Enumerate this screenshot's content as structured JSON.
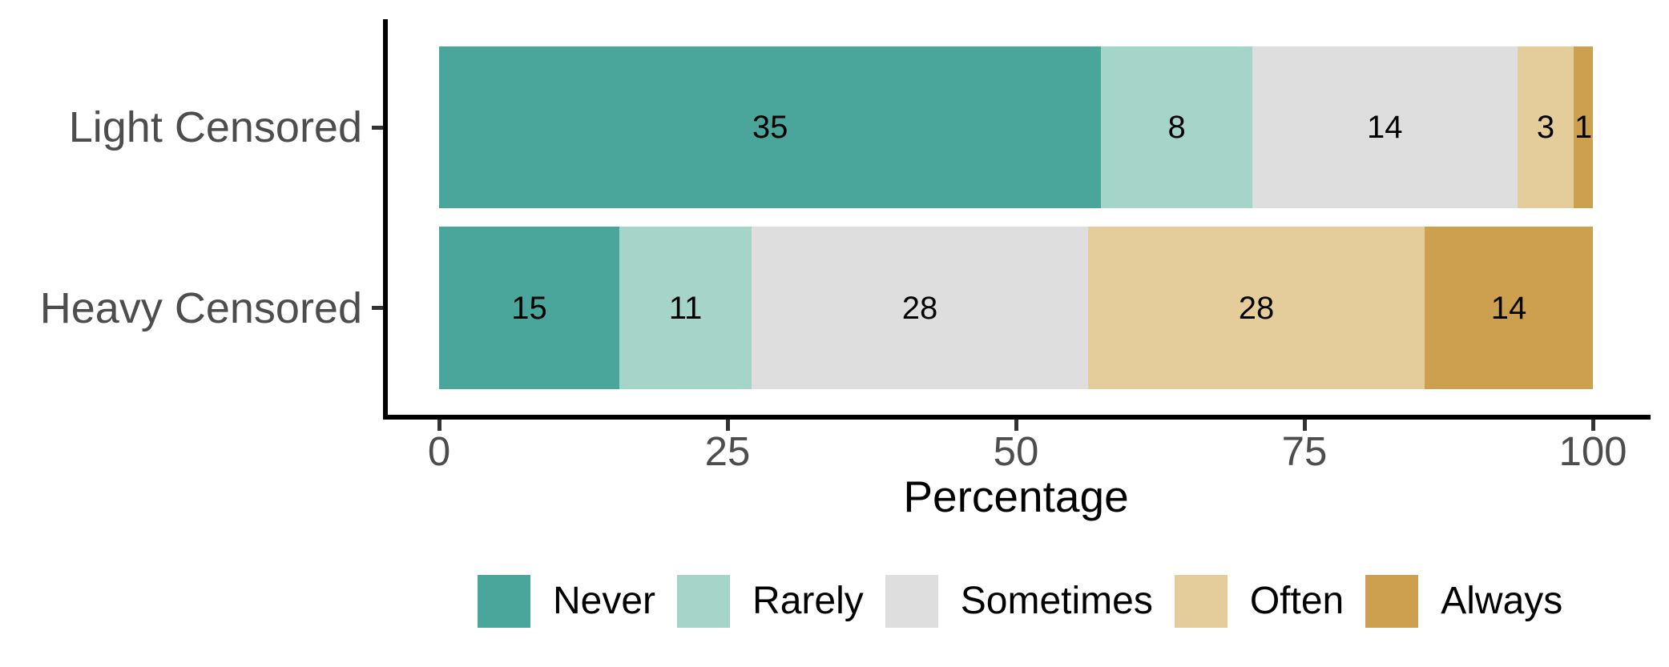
{
  "chart_data": {
    "type": "bar",
    "orientation": "horizontal",
    "stacked": true,
    "normalized": "percent",
    "title": "",
    "xlabel": "Percentage",
    "ylabel": "",
    "xlim": [
      0,
      100
    ],
    "x_ticks": [
      0,
      25,
      50,
      75,
      100
    ],
    "x_tick_labels": [
      "0",
      "25",
      "50",
      "75",
      "100"
    ],
    "grid": "off",
    "legend_position": "bottom",
    "categories": [
      "Light Censored",
      "Heavy Censored"
    ],
    "series": [
      {
        "name": "Never",
        "color": "#4AA69A",
        "values": [
          35,
          15
        ]
      },
      {
        "name": "Rarely",
        "color": "#A5D4C8",
        "values": [
          8,
          11
        ]
      },
      {
        "name": "Sometimes",
        "color": "#DEDEDE",
        "values": [
          14,
          28
        ]
      },
      {
        "name": "Often",
        "color": "#E4CD9B",
        "values": [
          3,
          28
        ]
      },
      {
        "name": "Always",
        "color": "#CCA04E",
        "values": [
          1,
          14
        ]
      }
    ],
    "bar_label_style": "segment counts shown centered in each segment",
    "bar_labels": {
      "Light Censored": [
        35,
        8,
        14,
        3,
        1
      ],
      "Heavy Censored": [
        15,
        11,
        28,
        28,
        14
      ]
    }
  },
  "style_colors": {
    "axis_text": "#4D4D4D",
    "axis_line": "#000000",
    "tick_mark": "#333333",
    "bar_label_text": "#000000",
    "legend_text": "#000000",
    "background": "#ffffff"
  }
}
